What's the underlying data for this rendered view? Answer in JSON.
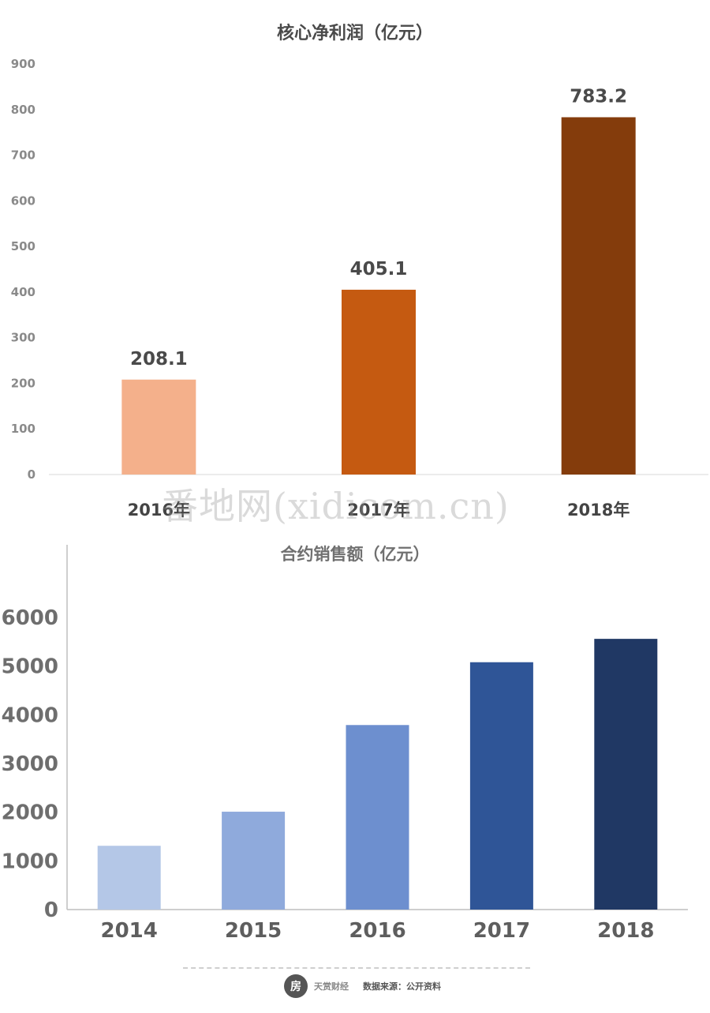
{
  "chart_data": [
    {
      "type": "bar",
      "title": "核心净利润（亿元）",
      "categories": [
        "2016年",
        "2017年",
        "2018年"
      ],
      "values": [
        208.1,
        405.1,
        783.2
      ],
      "data_labels": [
        "208.1",
        "405.1",
        "783.2"
      ],
      "colors": [
        "#F4B08B",
        "#C55A11",
        "#843C0C"
      ],
      "ylim": [
        0,
        900
      ],
      "yticks": [
        "0",
        "100",
        "200",
        "300",
        "400",
        "500",
        "600",
        "700",
        "800",
        "900"
      ],
      "grid": false,
      "xlabel": "",
      "ylabel": ""
    },
    {
      "type": "bar",
      "title": "合约销售额（亿元）",
      "categories": [
        "2014",
        "2015",
        "2016",
        "2017",
        "2018"
      ],
      "values": [
        1310,
        2010,
        3790,
        5080,
        5560
      ],
      "colors": [
        "#B4C7E7",
        "#8FAADC",
        "#6D8FCF",
        "#2F5597",
        "#203864"
      ],
      "ylim": [
        0,
        6000
      ],
      "yticks": [
        "0",
        "1000",
        "2000",
        "3000",
        "4000",
        "5000",
        "6000"
      ],
      "grid": false,
      "xlabel": "",
      "ylabel": ""
    }
  ],
  "watermark": "番地网(xidicom.cn)",
  "footer": {
    "logo_text": "房",
    "brand": "天赏财经",
    "source": "数据来源：公开资料"
  }
}
